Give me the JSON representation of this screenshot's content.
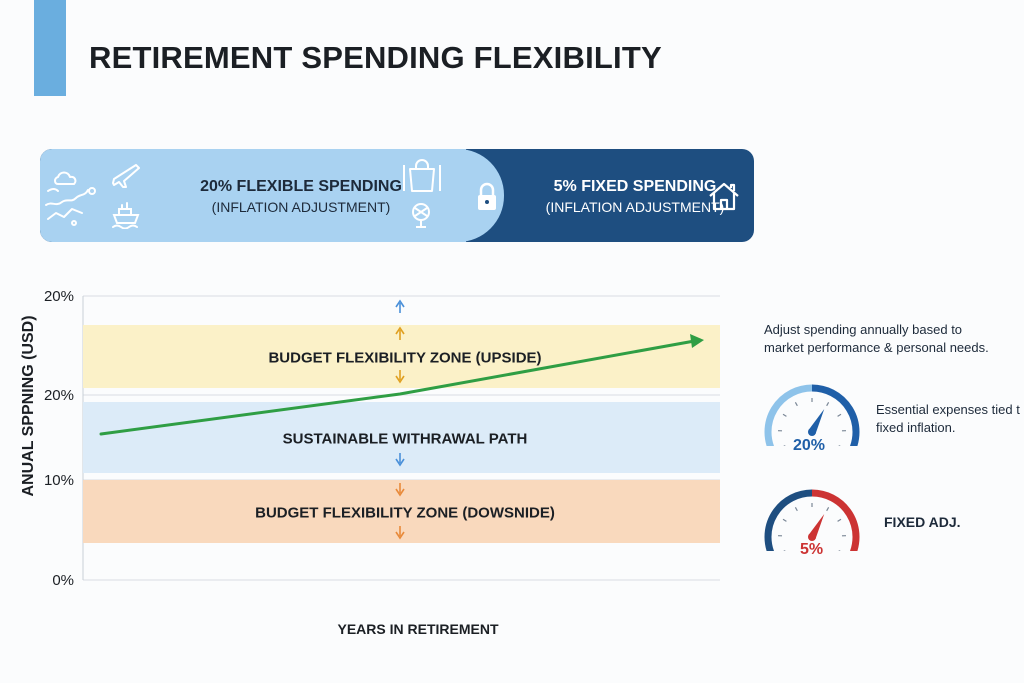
{
  "title": "RETIREMENT SPENDING FLEXIBILITY",
  "colors": {
    "accent": "#6aaedf",
    "flexible": "#a9d2f1",
    "fixed": "#1e4e80",
    "upside_zone": "#fbf1c8",
    "sustainable_zone": "#dcebf8",
    "downside_zone": "#f9d9bd",
    "trend_line": "#2f9e44",
    "gauge_blue": "#1f5fa8",
    "gauge_red": "#cc3333"
  },
  "banner": {
    "flexible": {
      "line1": "20% FLEXIBLE SPENDING",
      "line2": "(INFLATION ADJUSTMENT)",
      "icons": [
        "travel-doodle-icon",
        "airplane-icon",
        "cruise-icon",
        "shopping-bag-icon",
        "gift-icon"
      ]
    },
    "fixed": {
      "line1": "5% FIXED SPENDING",
      "line2": "(INFLATION ADJUSTMENT)",
      "icons": [
        "lock-icon",
        "house-icon"
      ]
    }
  },
  "chart_data": {
    "type": "line",
    "ylabel": "ANUAL SPPNING (USD)",
    "xlabel": "YEARS IN RETIREMENT",
    "y_tick_labels": [
      "20%",
      "20%",
      "10%",
      "0%"
    ],
    "grid": true,
    "zones": [
      {
        "name": "BUDGET FLEXIBILITY ZONE (UPSIDE)",
        "color": "#fbf1c8",
        "arrows": "up/up-down"
      },
      {
        "name": "SUSTAINABLE WITHRAWAL PATH",
        "color": "#dcebf8",
        "arrows": "down"
      },
      {
        "name": "BUDGET FLEXIBILITY ZONE (DOWSNIDE)",
        "color": "#f9d9bd",
        "arrows": "down/up-down"
      }
    ],
    "series": [
      {
        "points": [
          [
            0,
            0.515
          ],
          [
            0.49,
            0.655
          ],
          [
            1,
            0.845
          ]
        ]
      }
    ]
  },
  "side": {
    "note": [
      "Adjust spending annually based to",
      "market performance & personal needs."
    ],
    "gauges": [
      {
        "value_label": "20%",
        "level": 0.62,
        "caption": [
          "Essential expenses tied t",
          "fixed inflation."
        ],
        "color": "#1f5fa8"
      },
      {
        "value_label": "5%",
        "level": 0.62,
        "caption": [
          "FIXED ADJ."
        ],
        "color": "#cc3333"
      }
    ]
  }
}
